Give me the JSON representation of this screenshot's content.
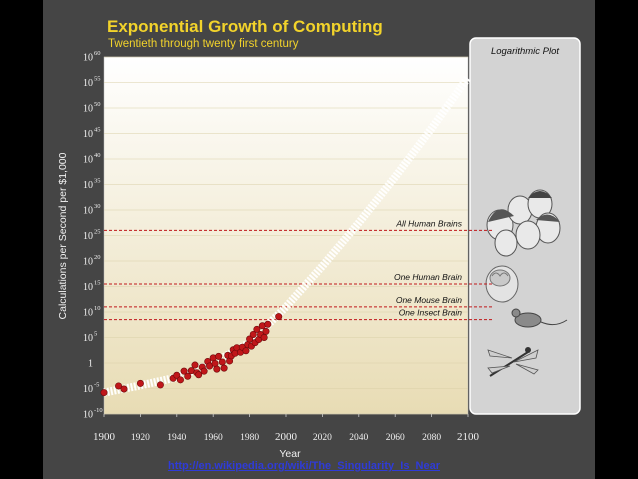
{
  "colors": {
    "title": "#f2d32b",
    "subtitle": "#f2d32b",
    "data_point": "#c0171a",
    "trend": "#ffffff",
    "reference_line": "#c0171a",
    "plot_top": "#ffffff",
    "plot_bottom": "#e8dcb4",
    "side_panel": "#d3d3d3"
  },
  "chart_data": {
    "type": "scatter",
    "title": "Exponential Growth of Computing",
    "subtitle": "Twentieth through twenty first century",
    "xlabel": "Year",
    "ylabel": "Calculations per Second per $1,000",
    "panel_label": "Logarithmic Plot",
    "y_scale": "log",
    "xlim": [
      1900,
      2100
    ],
    "ylim_exponent": [
      -10,
      60
    ],
    "x_ticks": [
      "1900",
      "1920",
      "1940",
      "1960",
      "1980",
      "2000",
      "2020",
      "2040",
      "2060",
      "2080",
      "2100"
    ],
    "y_ticks": [
      {
        "base": "10",
        "exp": "60"
      },
      {
        "base": "10",
        "exp": "55"
      },
      {
        "base": "10",
        "exp": "50"
      },
      {
        "base": "10",
        "exp": "45"
      },
      {
        "base": "10",
        "exp": "40"
      },
      {
        "base": "10",
        "exp": "35"
      },
      {
        "base": "10",
        "exp": "30"
      },
      {
        "base": "10",
        "exp": "25"
      },
      {
        "base": "10",
        "exp": "20"
      },
      {
        "base": "10",
        "exp": "15"
      },
      {
        "base": "10",
        "exp": "10"
      },
      {
        "base": "10",
        "exp": "5"
      },
      {
        "base": "1",
        "exp": ""
      },
      {
        "base": "10",
        "exp": "-5"
      },
      {
        "base": "10",
        "exp": "-10"
      }
    ],
    "points": [
      [
        1900,
        -5.8
      ],
      [
        1908,
        -4.5
      ],
      [
        1911,
        -5.1
      ],
      [
        1920,
        -4.0
      ],
      [
        1931,
        -4.3
      ],
      [
        1938,
        -3.0
      ],
      [
        1940,
        -2.4
      ],
      [
        1942,
        -3.3
      ],
      [
        1944,
        -1.6
      ],
      [
        1946,
        -2.6
      ],
      [
        1948,
        -1.5
      ],
      [
        1950,
        -0.4
      ],
      [
        1951,
        -1.9
      ],
      [
        1952,
        -2.3
      ],
      [
        1954,
        -0.8
      ],
      [
        1955,
        -1.6
      ],
      [
        1957,
        0.3
      ],
      [
        1958,
        -0.6
      ],
      [
        1960,
        1.0
      ],
      [
        1961,
        -0.1
      ],
      [
        1962,
        -1.2
      ],
      [
        1963,
        1.3
      ],
      [
        1965,
        0.2
      ],
      [
        1966,
        -1.0
      ],
      [
        1968,
        1.5
      ],
      [
        1969,
        0.4
      ],
      [
        1970,
        1.4
      ],
      [
        1971,
        2.6
      ],
      [
        1972,
        1.9
      ],
      [
        1973,
        3.0
      ],
      [
        1975,
        2.1
      ],
      [
        1976,
        3.1
      ],
      [
        1978,
        2.4
      ],
      [
        1979,
        3.6
      ],
      [
        1980,
        4.7
      ],
      [
        1981,
        3.3
      ],
      [
        1982,
        5.6
      ],
      [
        1983,
        4.0
      ],
      [
        1984,
        6.6
      ],
      [
        1985,
        4.6
      ],
      [
        1986,
        5.6
      ],
      [
        1987,
        7.3
      ],
      [
        1988,
        5.0
      ],
      [
        1989,
        6.2
      ],
      [
        1990,
        7.6
      ],
      [
        1996,
        9.1
      ]
    ],
    "trend": [
      [
        1900,
        -5.8
      ],
      [
        1920,
        -4.4
      ],
      [
        1940,
        -2.8
      ],
      [
        1960,
        0.0
      ],
      [
        1980,
        4.0
      ],
      [
        2000,
        11.0
      ],
      [
        2020,
        19.0
      ],
      [
        2040,
        27.5
      ],
      [
        2060,
        36.5
      ],
      [
        2080,
        46.0
      ],
      [
        2100,
        56.0
      ]
    ],
    "reference_lines": [
      {
        "label": "All Human Brains",
        "exponent": 26.0
      },
      {
        "label": "One Human Brain",
        "exponent": 15.5
      },
      {
        "label": "One Mouse Brain",
        "exponent": 11.0
      },
      {
        "label": "One Insect Brain",
        "exponent": 8.5
      }
    ]
  },
  "source_url": "http://en.wikipedia.org/wiki/The_Singularity_Is_Near"
}
